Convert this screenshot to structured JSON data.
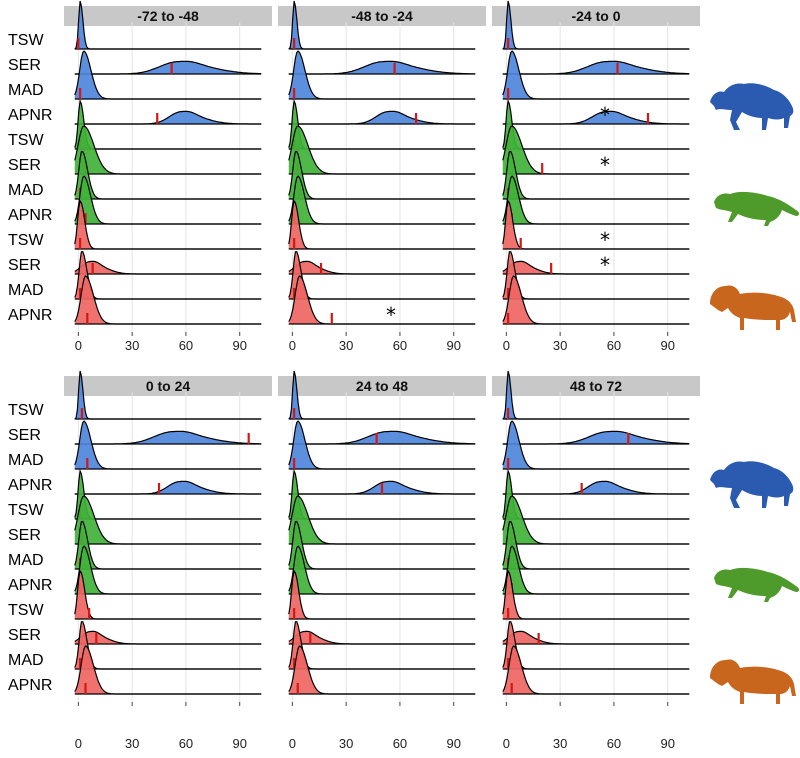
{
  "colors": {
    "spotted-hyena": "#4f86dc",
    "cheetah": "#41b23a",
    "lion": "#ee6663",
    "hyena-silhouette": "#2a5bb0",
    "cheetah-silhouette": "#4e9a2a",
    "lion-silhouette": "#c8661e",
    "observed": "#d01818",
    "strip": "#c8c8c8"
  },
  "chart_data": {
    "type": "area",
    "title": "",
    "xlabel": "",
    "ylabel": "",
    "xlim": [
      -8,
      108
    ],
    "xticks": [
      0,
      30,
      60,
      90
    ],
    "x_tick_labels": [
      "0",
      "30",
      "60",
      "90"
    ],
    "groups": [
      {
        "key": "hyena",
        "icon": "hyena-silhouette-icon",
        "color_key": "spotted-hyena"
      },
      {
        "key": "cheetah",
        "icon": "cheetah-silhouette-icon",
        "color_key": "cheetah"
      },
      {
        "key": "lion",
        "icon": "lion-silhouette-icon",
        "color_key": "lion"
      }
    ],
    "metrics": [
      "TSW",
      "SER",
      "MAD",
      "APNR"
    ],
    "row_labels": [
      "TSW",
      "SER",
      "MAD",
      "APNR",
      "TSW",
      "SER",
      "MAD",
      "APNR",
      "TSW",
      "SER",
      "MAD",
      "APNR"
    ],
    "facets": [
      {
        "title": "-72 to -48",
        "rows": [
          {
            "group": "hyena",
            "metric": "TSW",
            "mu": 1,
            "sigma": 1.2,
            "obs": 0
          },
          {
            "group": "hyena",
            "metric": "SER",
            "mu": 55,
            "sigma": 14,
            "obs": 52
          },
          {
            "group": "hyena",
            "metric": "MAD",
            "mu": 3,
            "sigma": 3.2,
            "obs": 1
          },
          {
            "group": "hyena",
            "metric": "APNR",
            "mu": 57,
            "sigma": 9,
            "obs": 44,
            "star": false
          },
          {
            "group": "cheetah",
            "metric": "TSW",
            "mu": 1,
            "sigma": 1.6,
            "obs": 1
          },
          {
            "group": "cheetah",
            "metric": "SER",
            "mu": 3,
            "sigma": 4.5,
            "obs": 4
          },
          {
            "group": "cheetah",
            "metric": "MAD",
            "mu": 2,
            "sigma": 2.5,
            "obs": 1
          },
          {
            "group": "cheetah",
            "metric": "APNR",
            "mu": 3,
            "sigma": 3,
            "obs": 4
          },
          {
            "group": "lion",
            "metric": "TSW",
            "mu": 1,
            "sigma": 2,
            "obs": 1
          },
          {
            "group": "lion",
            "metric": "SER",
            "mu": 6,
            "sigma": 6.5,
            "obs": 8
          },
          {
            "group": "lion",
            "metric": "MAD",
            "mu": 2,
            "sigma": 2.2,
            "obs": 1
          },
          {
            "group": "lion",
            "metric": "APNR",
            "mu": 4,
            "sigma": 3.5,
            "obs": 5
          }
        ]
      },
      {
        "title": "-48 to -24",
        "rows": [
          {
            "group": "hyena",
            "metric": "TSW",
            "mu": 1,
            "sigma": 1.2,
            "obs": 1
          },
          {
            "group": "hyena",
            "metric": "SER",
            "mu": 50,
            "sigma": 14,
            "obs": 57
          },
          {
            "group": "hyena",
            "metric": "MAD",
            "mu": 3,
            "sigma": 3.2,
            "obs": 1
          },
          {
            "group": "hyena",
            "metric": "APNR",
            "mu": 53,
            "sigma": 9,
            "obs": 69
          },
          {
            "group": "cheetah",
            "metric": "TSW",
            "mu": 1,
            "sigma": 1.6,
            "obs": 1
          },
          {
            "group": "cheetah",
            "metric": "SER",
            "mu": 3,
            "sigma": 4.5,
            "obs": 3
          },
          {
            "group": "cheetah",
            "metric": "MAD",
            "mu": 2,
            "sigma": 2.5,
            "obs": 4
          },
          {
            "group": "cheetah",
            "metric": "APNR",
            "mu": 3,
            "sigma": 3,
            "obs": 1
          },
          {
            "group": "lion",
            "metric": "TSW",
            "mu": 1,
            "sigma": 2,
            "obs": 1
          },
          {
            "group": "lion",
            "metric": "SER",
            "mu": 6,
            "sigma": 6.5,
            "obs": 16
          },
          {
            "group": "lion",
            "metric": "MAD",
            "mu": 2,
            "sigma": 2.2,
            "obs": 1
          },
          {
            "group": "lion",
            "metric": "APNR",
            "mu": 4,
            "sigma": 3.5,
            "obs": 22,
            "star": true,
            "star_x": 55
          }
        ]
      },
      {
        "title": "-24 to 0",
        "rows": [
          {
            "group": "hyena",
            "metric": "TSW",
            "mu": 1,
            "sigma": 1.2,
            "obs": 1
          },
          {
            "group": "hyena",
            "metric": "SER",
            "mu": 55,
            "sigma": 14,
            "obs": 62
          },
          {
            "group": "hyena",
            "metric": "MAD",
            "mu": 3,
            "sigma": 3.2,
            "obs": 1
          },
          {
            "group": "hyena",
            "metric": "APNR",
            "mu": 55,
            "sigma": 10,
            "obs": 79,
            "star": true,
            "star_x": 55
          },
          {
            "group": "cheetah",
            "metric": "TSW",
            "mu": 1,
            "sigma": 1.6,
            "obs": 1
          },
          {
            "group": "cheetah",
            "metric": "SER",
            "mu": 3,
            "sigma": 4.5,
            "obs": 20,
            "star": true,
            "star_x": 55
          },
          {
            "group": "cheetah",
            "metric": "MAD",
            "mu": 2,
            "sigma": 2.5,
            "obs": 1
          },
          {
            "group": "cheetah",
            "metric": "APNR",
            "mu": 3,
            "sigma": 3,
            "obs": 3
          },
          {
            "group": "lion",
            "metric": "TSW",
            "mu": 1,
            "sigma": 2,
            "obs": 8,
            "star": true,
            "star_x": 55
          },
          {
            "group": "lion",
            "metric": "SER",
            "mu": 6,
            "sigma": 6.5,
            "obs": 25,
            "star": true,
            "star_x": 55
          },
          {
            "group": "lion",
            "metric": "MAD",
            "mu": 2,
            "sigma": 2.2,
            "obs": 1
          },
          {
            "group": "lion",
            "metric": "APNR",
            "mu": 4,
            "sigma": 3.5,
            "obs": 1
          }
        ]
      },
      {
        "title": "0 to 24",
        "rows": [
          {
            "group": "hyena",
            "metric": "TSW",
            "mu": 1,
            "sigma": 1.2,
            "obs": 2
          },
          {
            "group": "hyena",
            "metric": "SER",
            "mu": 52,
            "sigma": 14,
            "obs": 95
          },
          {
            "group": "hyena",
            "metric": "MAD",
            "mu": 3,
            "sigma": 3.2,
            "obs": 5
          },
          {
            "group": "hyena",
            "metric": "APNR",
            "mu": 56,
            "sigma": 9,
            "obs": 45
          },
          {
            "group": "cheetah",
            "metric": "TSW",
            "mu": 1,
            "sigma": 1.6,
            "obs": 1
          },
          {
            "group": "cheetah",
            "metric": "SER",
            "mu": 3,
            "sigma": 4.5,
            "obs": 2
          },
          {
            "group": "cheetah",
            "metric": "MAD",
            "mu": 2,
            "sigma": 2.5,
            "obs": 1
          },
          {
            "group": "cheetah",
            "metric": "APNR",
            "mu": 3,
            "sigma": 3,
            "obs": 1
          },
          {
            "group": "lion",
            "metric": "TSW",
            "mu": 1,
            "sigma": 2,
            "obs": 6
          },
          {
            "group": "lion",
            "metric": "SER",
            "mu": 6,
            "sigma": 6.5,
            "obs": 10
          },
          {
            "group": "lion",
            "metric": "MAD",
            "mu": 2,
            "sigma": 2.2,
            "obs": 1
          },
          {
            "group": "lion",
            "metric": "APNR",
            "mu": 4,
            "sigma": 3.5,
            "obs": 4
          }
        ]
      },
      {
        "title": "24 to 48",
        "rows": [
          {
            "group": "hyena",
            "metric": "TSW",
            "mu": 1,
            "sigma": 1.2,
            "obs": 1
          },
          {
            "group": "hyena",
            "metric": "SER",
            "mu": 52,
            "sigma": 14,
            "obs": 47
          },
          {
            "group": "hyena",
            "metric": "MAD",
            "mu": 3,
            "sigma": 3.2,
            "obs": 1
          },
          {
            "group": "hyena",
            "metric": "APNR",
            "mu": 52,
            "sigma": 9,
            "obs": 50
          },
          {
            "group": "cheetah",
            "metric": "TSW",
            "mu": 1,
            "sigma": 1.6,
            "obs": 1
          },
          {
            "group": "cheetah",
            "metric": "SER",
            "mu": 3,
            "sigma": 4.5,
            "obs": 1
          },
          {
            "group": "cheetah",
            "metric": "MAD",
            "mu": 2,
            "sigma": 2.5,
            "obs": 3
          },
          {
            "group": "cheetah",
            "metric": "APNR",
            "mu": 3,
            "sigma": 3,
            "obs": 1
          },
          {
            "group": "lion",
            "metric": "TSW",
            "mu": 1,
            "sigma": 2,
            "obs": 1
          },
          {
            "group": "lion",
            "metric": "SER",
            "mu": 6,
            "sigma": 6.5,
            "obs": 10
          },
          {
            "group": "lion",
            "metric": "MAD",
            "mu": 2,
            "sigma": 2.2,
            "obs": 1
          },
          {
            "group": "lion",
            "metric": "APNR",
            "mu": 4,
            "sigma": 3.5,
            "obs": 3
          }
        ]
      },
      {
        "title": "48 to 72",
        "rows": [
          {
            "group": "hyena",
            "metric": "TSW",
            "mu": 1,
            "sigma": 1.2,
            "obs": 1
          },
          {
            "group": "hyena",
            "metric": "SER",
            "mu": 56,
            "sigma": 14,
            "obs": 68
          },
          {
            "group": "hyena",
            "metric": "MAD",
            "mu": 3,
            "sigma": 3.2,
            "obs": 1
          },
          {
            "group": "hyena",
            "metric": "APNR",
            "mu": 52,
            "sigma": 9,
            "obs": 42
          },
          {
            "group": "cheetah",
            "metric": "TSW",
            "mu": 1,
            "sigma": 1.6,
            "obs": 1
          },
          {
            "group": "cheetah",
            "metric": "SER",
            "mu": 3,
            "sigma": 4.5,
            "obs": 3
          },
          {
            "group": "cheetah",
            "metric": "MAD",
            "mu": 2,
            "sigma": 2.5,
            "obs": 1
          },
          {
            "group": "cheetah",
            "metric": "APNR",
            "mu": 3,
            "sigma": 3,
            "obs": 3
          },
          {
            "group": "lion",
            "metric": "TSW",
            "mu": 1,
            "sigma": 2,
            "obs": 1
          },
          {
            "group": "lion",
            "metric": "SER",
            "mu": 6,
            "sigma": 6.5,
            "obs": 18
          },
          {
            "group": "lion",
            "metric": "MAD",
            "mu": 2,
            "sigma": 2.2,
            "obs": 1
          },
          {
            "group": "lion",
            "metric": "APNR",
            "mu": 4,
            "sigma": 3.5,
            "obs": 3
          }
        ]
      }
    ],
    "star_label": "*"
  }
}
